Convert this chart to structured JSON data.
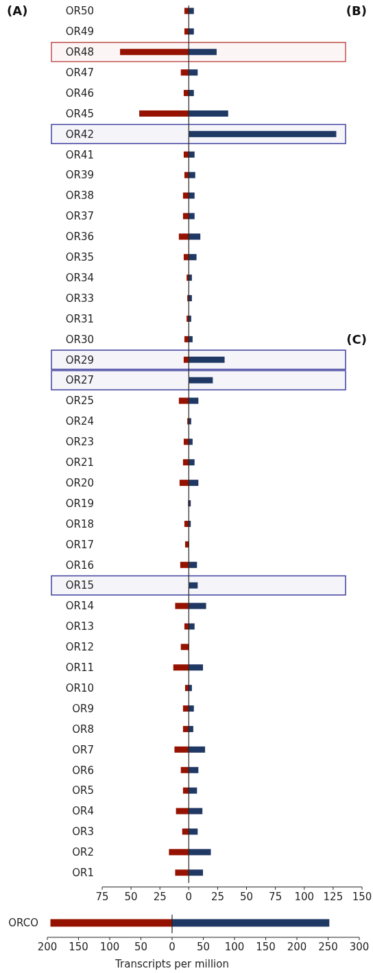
{
  "chart_data": [
    {
      "type": "bar",
      "orientation": "horizontal",
      "stacked": true,
      "categories": [
        "OR50",
        "OR49",
        "OR48",
        "OR47",
        "OR46",
        "OR45",
        "OR42",
        "OR41",
        "OR39",
        "OR38",
        "OR37",
        "OR36",
        "OR35",
        "OR34",
        "OR33",
        "OR31",
        "OR30",
        "OR29",
        "OR27",
        "OR25",
        "OR24",
        "OR23",
        "OR21",
        "OR20",
        "OR19",
        "OR18",
        "OR17",
        "OR16",
        "OR15",
        "OR14",
        "OR13",
        "OR12",
        "OR11",
        "OR10",
        "OR9",
        "OR8",
        "OR7",
        "OR6",
        "OR5",
        "OR4",
        "OR3",
        "OR2",
        "OR1"
      ],
      "series": [
        {
          "color": "#951200",
          "values": [
            -3.8,
            -3.8,
            -59.5,
            -6.9,
            -4.4,
            -42.9,
            0,
            -4.4,
            -3.8,
            -5,
            -5,
            -8.6,
            -4.4,
            -1.9,
            -1.3,
            -1.9,
            -3.8,
            -4.4,
            0,
            -8.6,
            -1.3,
            -4.4,
            -5,
            -8,
            -0.6,
            -3.8,
            -3.2,
            -7.4,
            0,
            -11.8,
            -3.8,
            -6.9,
            -13.4,
            -3.2,
            -5,
            -5,
            -12.4,
            -6.9,
            -5,
            -11.1,
            -5.7,
            -17.2,
            -11.8
          ]
        },
        {
          "color": "#203864",
          "values": [
            4.4,
            4.4,
            24.1,
            7.7,
            4.4,
            34.1,
            127.7,
            5,
            5.6,
            5,
            5,
            10,
            6.7,
            2.7,
            2.7,
            2.1,
            3.3,
            31,
            20.8,
            8.3,
            2.1,
            3.3,
            5,
            8.3,
            1.7,
            1.7,
            0,
            7.1,
            7.7,
            15,
            5,
            0,
            12.3,
            2.7,
            4.4,
            3.9,
            14.1,
            8.3,
            7.1,
            11.8,
            7.7,
            19.1,
            12.3
          ]
        }
      ],
      "xlim": [
        -75,
        150
      ],
      "xticks": [
        {
          "value": -75,
          "label": "75"
        },
        {
          "value": -50,
          "label": "50"
        },
        {
          "value": -25,
          "label": "25"
        },
        0,
        25,
        50,
        75,
        100,
        125,
        150
      ],
      "bands": [
        {
          "axis": "y",
          "from": "OR48",
          "to": "OR48",
          "color": "#c0504d"
        },
        {
          "axis": "y",
          "from": "OR42",
          "to": "OR42",
          "color": "#3f3f9f"
        },
        {
          "axis": "y",
          "from": "OR29",
          "to": "OR29",
          "color": "#3f3f9f"
        },
        {
          "axis": "y",
          "from": "OR27",
          "to": "OR27",
          "color": "#3f3f9f"
        },
        {
          "axis": "y",
          "from": "OR15",
          "to": "OR15",
          "color": "#3f3f9f"
        }
      ],
      "annotations": [
        "(A)",
        "(B)",
        "(C)"
      ]
    },
    {
      "type": "bar",
      "orientation": "horizontal",
      "stacked": true,
      "categories": [
        "ORCO"
      ],
      "series": [
        {
          "color": "#951200",
          "values": [
            -195
          ]
        },
        {
          "color": "#203864",
          "values": [
            252
          ]
        }
      ],
      "xlim": [
        -200,
        300
      ],
      "xticks": [
        {
          "value": -200,
          "label": "200"
        },
        {
          "value": -150,
          "label": "150"
        },
        {
          "value": -100,
          "label": "100"
        },
        {
          "value": -50,
          "label": "50"
        },
        0,
        50,
        100,
        150,
        200,
        250,
        300
      ],
      "xlabel": "Transcripts per million"
    }
  ]
}
